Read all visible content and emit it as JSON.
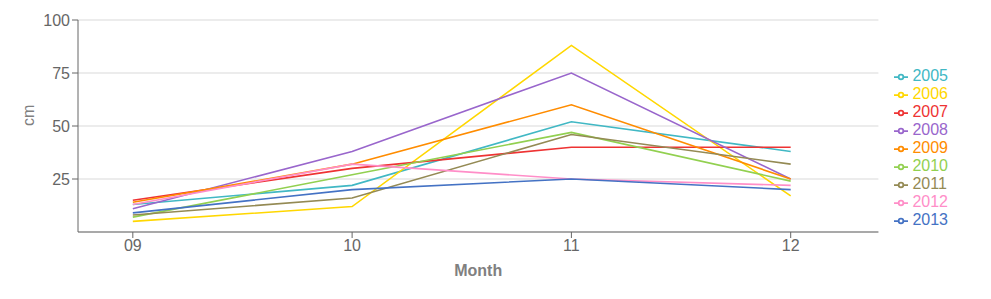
{
  "chart_data": {
    "type": "line",
    "x": [
      9,
      10,
      11,
      12
    ],
    "series": [
      {
        "name": "2005",
        "color": "#41B8C4",
        "values": [
          13,
          22,
          52,
          38
        ]
      },
      {
        "name": "2006",
        "color": "#FFD700",
        "values": [
          5,
          12,
          88,
          17
        ]
      },
      {
        "name": "2007",
        "color": "#EE3333",
        "values": [
          15,
          30,
          40,
          40
        ]
      },
      {
        "name": "2008",
        "color": "#9966CC",
        "values": [
          11,
          38,
          75,
          25
        ]
      },
      {
        "name": "2009",
        "color": "#FF8C00",
        "values": [
          14,
          32,
          60,
          25
        ]
      },
      {
        "name": "2010",
        "color": "#92D050",
        "values": [
          7,
          27,
          47,
          24
        ]
      },
      {
        "name": "2011",
        "color": "#948A54",
        "values": [
          8,
          16,
          46,
          32
        ]
      },
      {
        "name": "2012",
        "color": "#FF8EC8",
        "values": [
          13,
          32,
          25,
          22
        ]
      },
      {
        "name": "2013",
        "color": "#4472C4",
        "values": [
          9,
          20,
          25,
          20
        ]
      }
    ],
    "xlabel": "Month",
    "ylabel": "cm",
    "xlim": [
      8.75,
      12.4
    ],
    "ylim": [
      0,
      100
    ],
    "xticks": [
      {
        "value": 9,
        "label": "09"
      },
      {
        "value": 10,
        "label": "10"
      },
      {
        "value": 11,
        "label": "11"
      },
      {
        "value": 12,
        "label": "12"
      }
    ],
    "yticks": [
      25,
      50,
      75,
      100
    ],
    "grid": true,
    "legend": "right"
  }
}
